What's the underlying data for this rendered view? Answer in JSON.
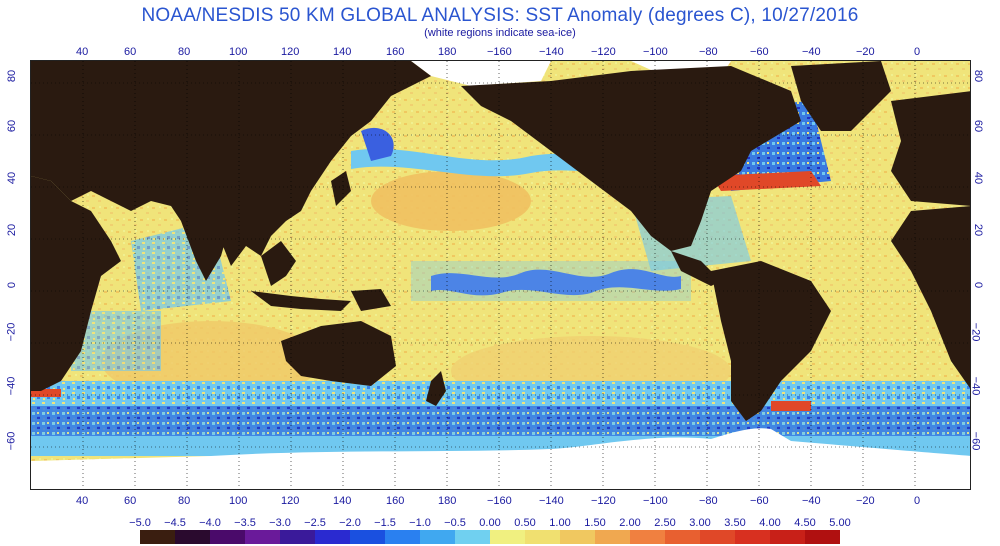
{
  "header": {
    "title": "NOAA/NESDIS 50 KM GLOBAL ANALYSIS: SST Anomaly (degrees C), 10/27/2016",
    "subtitle": "(white regions indicate sea-ice)"
  },
  "axes": {
    "longitude_labels": [
      "40",
      "60",
      "80",
      "100",
      "120",
      "140",
      "160",
      "180",
      "−160",
      "−140",
      "−120",
      "−100",
      "−80",
      "−60",
      "−40",
      "−20",
      "0"
    ],
    "latitude_labels": [
      "80",
      "60",
      "40",
      "20",
      "0",
      "−20",
      "−40",
      "−60"
    ]
  },
  "colorbar": {
    "labels": [
      "−5.0",
      "−4.5",
      "−4.0",
      "−3.5",
      "−3.0",
      "−2.5",
      "−2.0",
      "−1.5",
      "−1.0",
      "−0.5",
      "0.00",
      "0.50",
      "1.00",
      "1.50",
      "2.00",
      "2.50",
      "3.00",
      "3.50",
      "4.00",
      "4.50",
      "5.00"
    ],
    "colors": [
      "#3a1e10",
      "#2a0a2e",
      "#4a0a6a",
      "#6a1a9a",
      "#3a1a9a",
      "#2a2ad0",
      "#1a50e0",
      "#2a80f0",
      "#40a8f0",
      "#70d0f0",
      "#f0f080",
      "#f0e070",
      "#f0c860",
      "#f0a850",
      "#f08040",
      "#e86030",
      "#e04828",
      "#d83020",
      "#c82018",
      "#b01010"
    ]
  },
  "map": {
    "colors": {
      "land": "#2a1a10",
      "ocean_warm": "#f0d070",
      "ocean_neutral": "#f0ea80",
      "ocean_cool": "#70c8f0",
      "ocean_cold": "#3050d8",
      "anomaly_hot": "#e04828",
      "sea_ice": "#ffffff"
    }
  }
}
